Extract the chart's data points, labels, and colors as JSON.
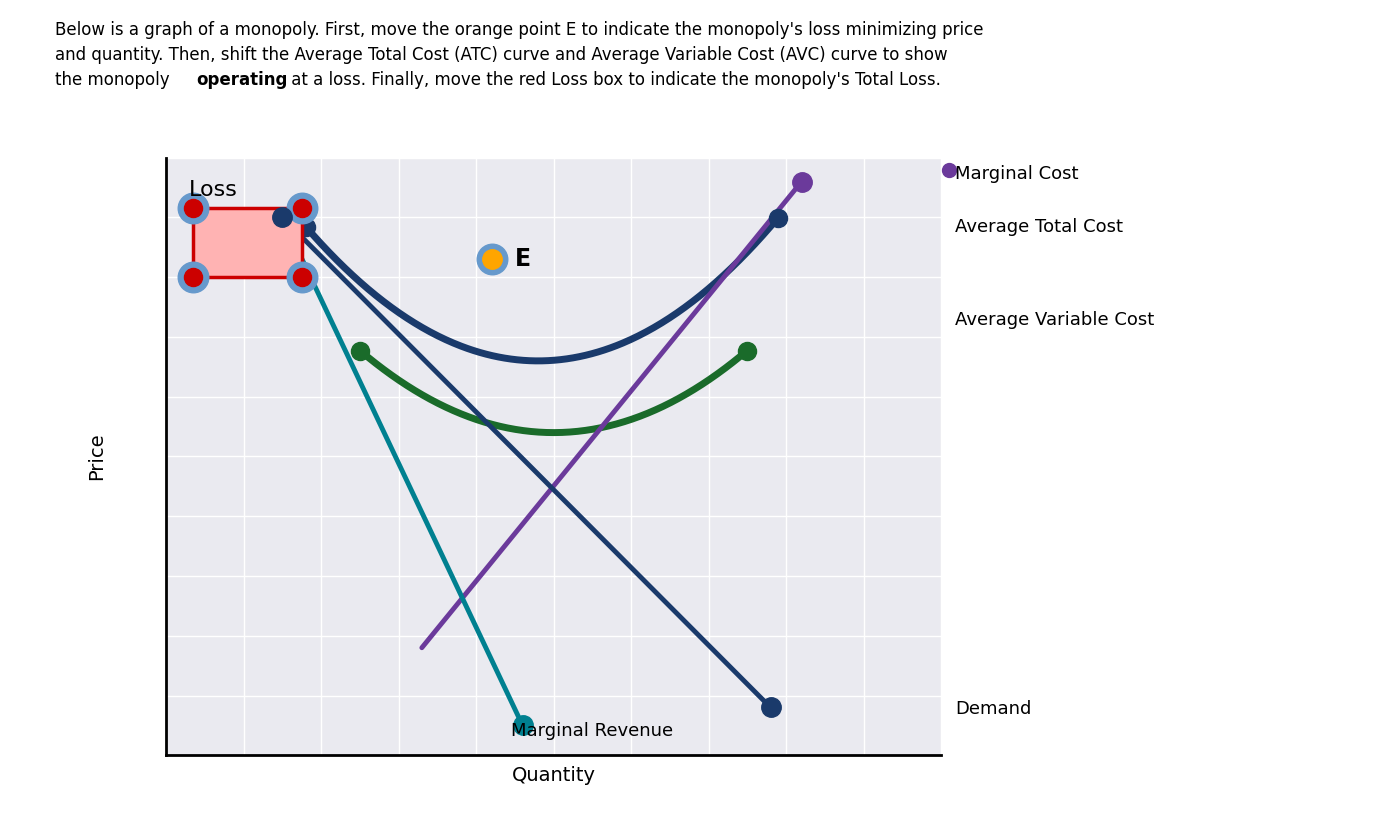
{
  "xlabel": "Quantity",
  "ylabel": "Price",
  "fig_bg": "#f8f8f8",
  "plot_bg": "#f0f0f8",
  "grid_color": "#d8d8d8",
  "atc_color": "#1a3a6b",
  "avc_color": "#1a6b2a",
  "mc_color": "#6b3a9b",
  "demand_color": "#1a3a6b",
  "mr_color": "#008090",
  "loss_edge": "#cc0000",
  "loss_fill": "#ffb3b3",
  "corner_ring": "#6699cc",
  "corner_dot": "#cc0000",
  "e_ring": "#6699cc",
  "e_fill": "#ffa500",
  "shared_start_dot": "#1a3a6b",
  "mr_end_dot": "#008090",
  "demand_end_dot": "#1a3a6b",
  "mc_end_dot": "#6b3a9b",
  "atc_end_dot": "#1a3a6b",
  "avc_end_dot": "#1a6b2a",
  "label_mc": "Marginal Cost",
  "label_atc": "Average Total Cost",
  "label_avc": "Average Variable Cost",
  "label_demand": "Demand",
  "label_mr": "Marginal Revenue",
  "label_loss": "Loss",
  "label_e": "E"
}
